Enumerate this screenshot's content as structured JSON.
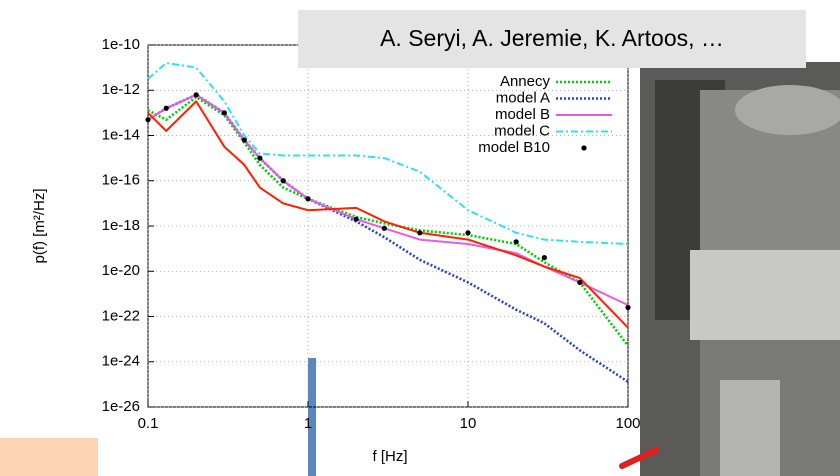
{
  "chart_data": {
    "type": "line",
    "ylabel": "p(f) [m²/Hz]",
    "xlabel": "f [Hz]",
    "annotation": "A. Seryi, A. Jeremie, K. Artoos, …",
    "xscale": "log",
    "yscale": "log",
    "grid": true,
    "legend": "upper right",
    "xlim": [
      0.1,
      100
    ],
    "ylim": [
      1e-26,
      1e-10
    ],
    "xticks": [
      0.1,
      1,
      10,
      100
    ],
    "yticks": [
      1e-10,
      1e-12,
      1e-14,
      1e-16,
      1e-18,
      1e-20,
      1e-22,
      1e-24,
      1e-26
    ],
    "x": [
      0.1,
      0.13,
      0.2,
      0.3,
      0.4,
      0.5,
      0.7,
      1,
      2,
      3,
      5,
      10,
      20,
      30,
      50,
      100
    ],
    "series": [
      {
        "name": "Annecy",
        "color": "#00d000",
        "style": "dotted",
        "values": [
          1.3e-13,
          5e-14,
          5e-13,
          7.9e-14,
          5e-15,
          5e-16,
          5e-17,
          1.6e-17,
          2.5e-18,
          1.3e-18,
          6.3e-19,
          4e-19,
          1.6e-19,
          2.5e-20,
          3.2e-21,
          5e-24
        ]
      },
      {
        "name": "model A",
        "color": "#2a3fd0",
        "style": "dotted",
        "values": [
          5e-14,
          1.6e-13,
          6.3e-13,
          1e-13,
          6.3e-15,
          1e-15,
          1e-16,
          1.6e-17,
          1.6e-18,
          3.2e-19,
          3.2e-20,
          3.2e-21,
          2e-22,
          5e-23,
          3.2e-24,
          1.3e-25
        ]
      },
      {
        "name": "model B",
        "color": "#e060e0",
        "style": "solid",
        "values": [
          5e-14,
          1.6e-13,
          6.3e-13,
          1e-13,
          6.3e-15,
          1e-15,
          1e-16,
          1.6e-17,
          2e-18,
          7.9e-19,
          2.5e-19,
          1.6e-19,
          6.3e-20,
          1.6e-20,
          3.2e-21,
          3.2e-22
        ]
      },
      {
        "name": "model C",
        "color": "#30e0f0",
        "style": "dashdot",
        "values": [
          3.2e-12,
          1.6e-11,
          1e-11,
          3.2e-13,
          1e-14,
          1.6e-15,
          1.3e-15,
          1.3e-15,
          1.3e-15,
          1e-15,
          2.5e-16,
          5e-18,
          5e-19,
          2.5e-19,
          2e-19,
          1.6e-19
        ]
      },
      {
        "color": "#ff2000",
        "style": "solid",
        "values": [
          1e-13,
          1.6e-14,
          3.2e-13,
          3.2e-15,
          5e-16,
          5e-17,
          1e-17,
          5e-18,
          6.3e-18,
          1.6e-18,
          5e-19,
          2.5e-19,
          5e-20,
          1.6e-20,
          5e-21,
          3.2e-23
        ]
      },
      {
        "name": "model B10",
        "color": "#000000",
        "style": "points",
        "values": [
          5e-14,
          1.6e-13,
          6.3e-13,
          1e-13,
          6.3e-15,
          1e-15,
          1e-16,
          1.6e-17,
          2e-18,
          7.9e-19,
          5e-19,
          5e-19,
          2e-19,
          4e-20,
          3.2e-21,
          2.5e-22
        ]
      }
    ]
  }
}
